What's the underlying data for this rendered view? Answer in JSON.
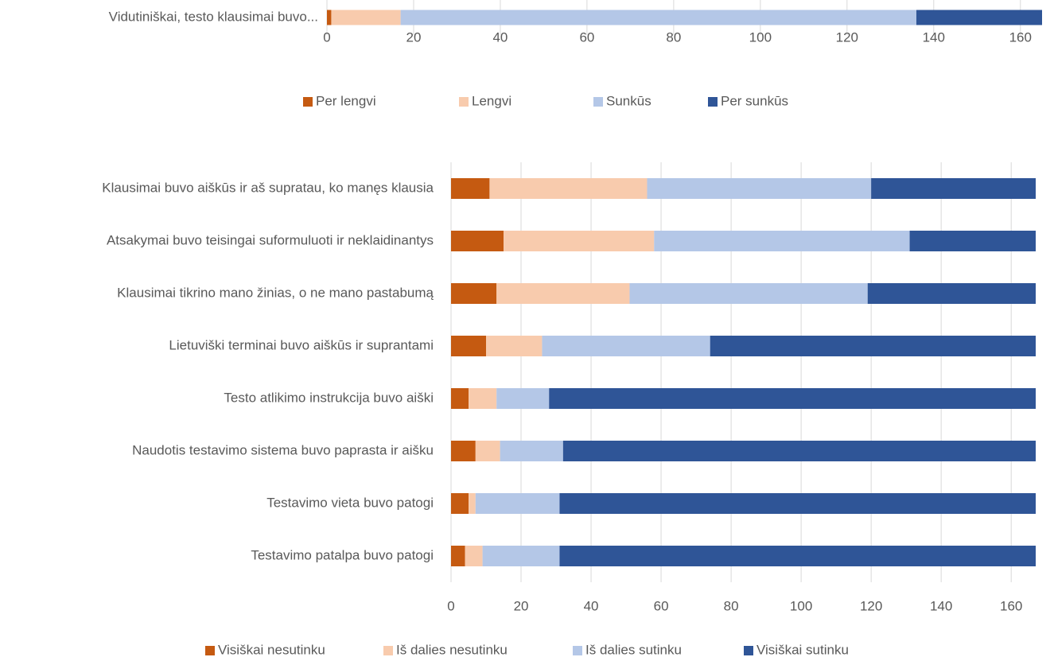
{
  "chart_data": [
    {
      "type": "stacked-barh",
      "categories": [
        "Vidutiniškai, testo klausimai buvo..."
      ],
      "series": [
        {
          "name": "Per lengvi",
          "color": "#c55a11",
          "values": [
            1
          ]
        },
        {
          "name": "Lengvi",
          "color": "#f8cbad",
          "values": [
            16
          ]
        },
        {
          "name": "Sunkūs",
          "color": "#b4c7e7",
          "values": [
            119
          ]
        },
        {
          "name": "Per sunkūs",
          "color": "#2f5597",
          "values": [
            29
          ]
        }
      ],
      "xlim": [
        0,
        165
      ],
      "xticks": [
        0,
        20,
        40,
        60,
        80,
        100,
        120,
        140,
        160
      ],
      "grid": true,
      "legend": "bottom"
    },
    {
      "type": "stacked-barh",
      "categories": [
        "Klausimai buvo aiškūs ir aš supratau, ko manęs klausia",
        "Atsakymai buvo teisingai suformuluoti ir neklaidinantys",
        "Klausimai tikrino mano žinias, o ne mano pastabumą",
        "Lietuviški terminai buvo aiškūs ir suprantami",
        "Testo atlikimo instrukcija buvo aiški",
        "Naudotis testavimo sistema buvo paprasta ir aišku",
        "Testavimo vieta buvo patogi",
        "Testavimo patalpa buvo patogi"
      ],
      "series": [
        {
          "name": "Visiškai nesutinku",
          "color": "#c55a11",
          "values": [
            11,
            15,
            13,
            10,
            5,
            7,
            5,
            4
          ]
        },
        {
          "name": "Iš dalies nesutinku",
          "color": "#f8cbad",
          "values": [
            45,
            43,
            38,
            16,
            8,
            7,
            2,
            5
          ]
        },
        {
          "name": "Iš dalies sutinku",
          "color": "#b4c7e7",
          "values": [
            64,
            73,
            68,
            48,
            15,
            18,
            24,
            22
          ]
        },
        {
          "name": "Visiškai sutinku",
          "color": "#2f5597",
          "values": [
            47,
            36,
            48,
            93,
            139,
            135,
            136,
            136
          ]
        }
      ],
      "xlim": [
        0,
        167
      ],
      "xticks": [
        0,
        20,
        40,
        60,
        80,
        100,
        120,
        140,
        160
      ],
      "grid": true,
      "legend": "bottom"
    }
  ]
}
